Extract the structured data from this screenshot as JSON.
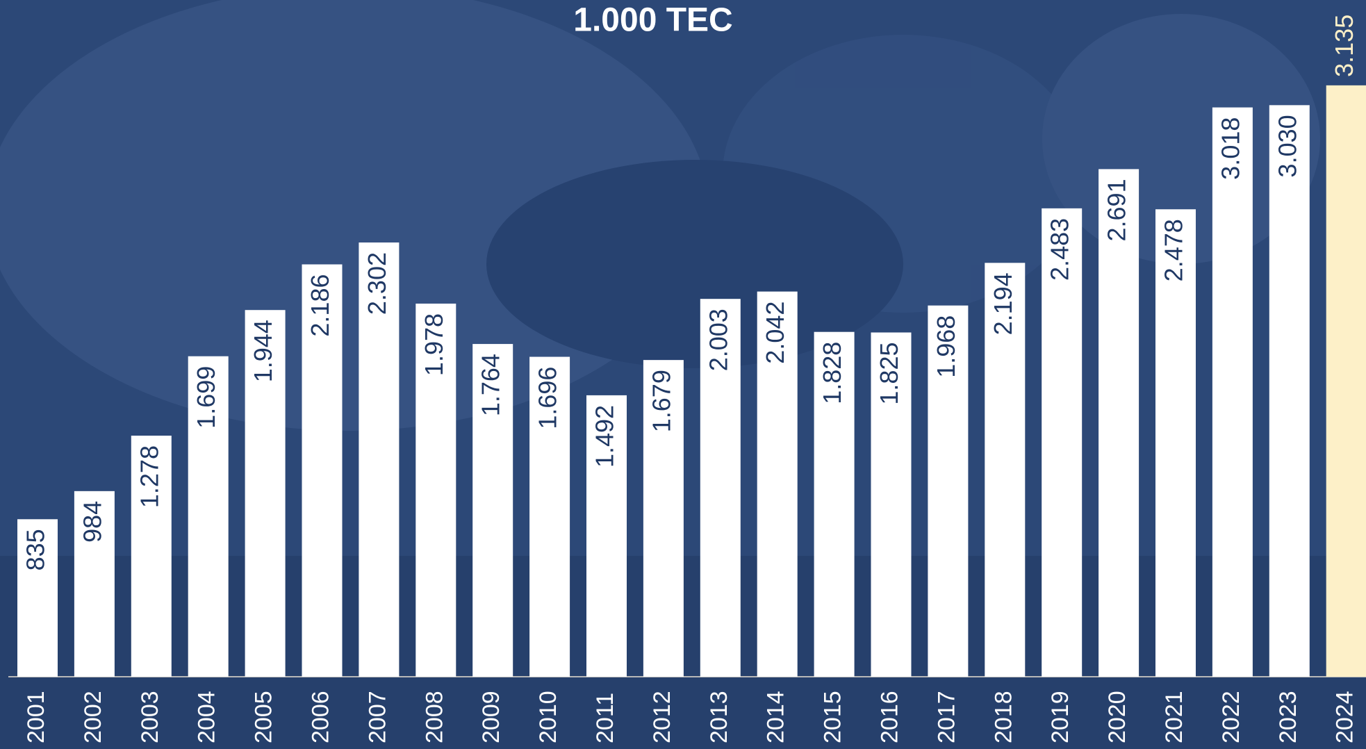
{
  "chart_data": {
    "type": "bar",
    "title": "1.000 TEC",
    "categories": [
      "2001",
      "2002",
      "2003",
      "2004",
      "2005",
      "2006",
      "2007",
      "2008",
      "2009",
      "2010",
      "2011",
      "2012",
      "2013",
      "2014",
      "2015",
      "2016",
      "2017",
      "2018",
      "2019",
      "2020",
      "2021",
      "2022",
      "2023",
      "2024"
    ],
    "values": [
      835,
      984,
      1278,
      1699,
      1944,
      2186,
      2302,
      1978,
      1764,
      1696,
      1492,
      1679,
      2003,
      2042,
      1828,
      1825,
      1968,
      2194,
      2483,
      2691,
      2478,
      3018,
      3030,
      3135
    ],
    "value_labels": [
      "835",
      "984",
      "1.278",
      "1.699",
      "1.944",
      "2.186",
      "2.302",
      "1.978",
      "1.764",
      "1.696",
      "1.492",
      "1.679",
      "2.003",
      "2.042",
      "1.828",
      "1.825",
      "1.968",
      "2.194",
      "2.483",
      "2.691",
      "2.478",
      "3.018",
      "3.030",
      "3.135"
    ],
    "colors": [
      "#ffffff",
      "#ffffff",
      "#ffffff",
      "#ffffff",
      "#ffffff",
      "#ffffff",
      "#ffffff",
      "#ffffff",
      "#ffffff",
      "#ffffff",
      "#ffffff",
      "#ffffff",
      "#ffffff",
      "#ffffff",
      "#ffffff",
      "#ffffff",
      "#ffffff",
      "#ffffff",
      "#ffffff",
      "#ffffff",
      "#ffffff",
      "#ffffff",
      "#ffffff",
      "#fdf0c8"
    ]
  }
}
